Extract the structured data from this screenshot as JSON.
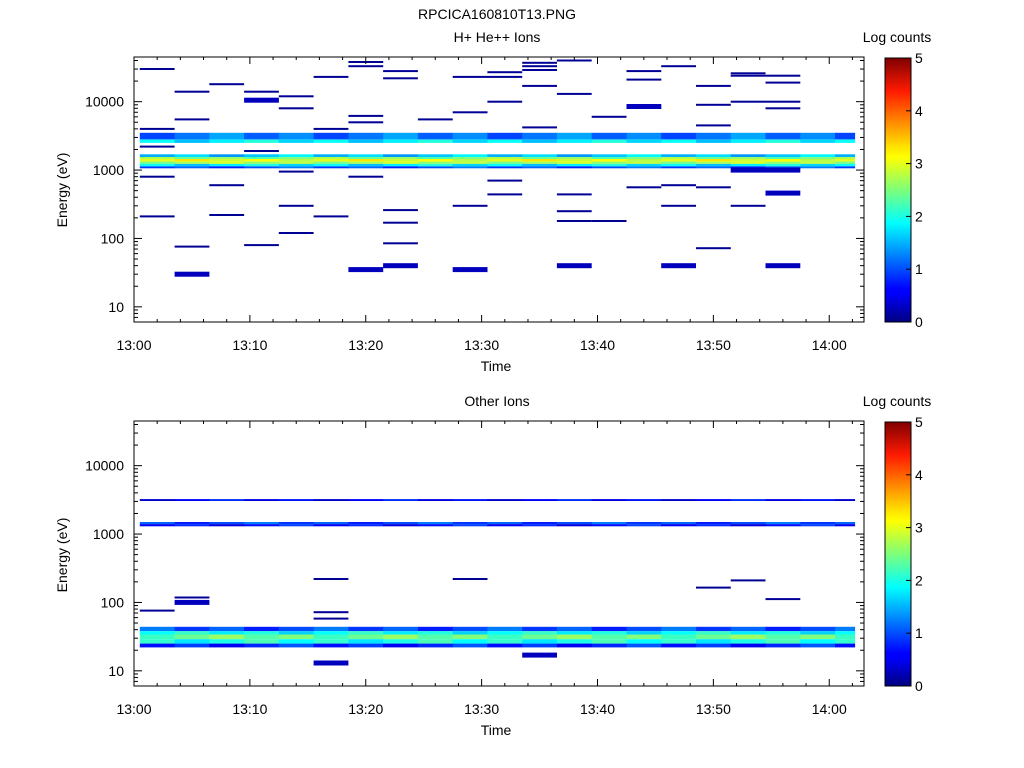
{
  "page_title": "RPCICA160810T13.PNG",
  "panels": [
    {
      "title": "H+ He++ Ions",
      "ylabel": "Energy (eV)",
      "xlabel": "Time",
      "colorbar_label": "Log counts"
    },
    {
      "title": "Other Ions",
      "ylabel": "Energy (eV)",
      "xlabel": "Time",
      "colorbar_label": "Log counts"
    }
  ],
  "chart_data": [
    {
      "type": "heatmap",
      "title": "H+ He++ Ions",
      "xlabel": "Time",
      "ylabel": "Energy (eV)",
      "y_scale": "log",
      "ylim": [
        6,
        45000
      ],
      "xlim": [
        "13:00",
        "14:03"
      ],
      "x_ticks": [
        "13:00",
        "13:10",
        "13:20",
        "13:30",
        "13:40",
        "13:50",
        "14:00"
      ],
      "y_ticks": [
        "10",
        "100",
        "1000",
        "10000"
      ],
      "colorbar": {
        "label": "Log counts",
        "min": 0,
        "max": 5,
        "ticks": [
          "0",
          "1",
          "2",
          "3",
          "4",
          "5"
        ],
        "colormap": "jet"
      },
      "time_bins": [
        "13:02",
        "13:05",
        "13:08",
        "13:11",
        "13:14",
        "13:17",
        "13:20",
        "13:23",
        "13:26",
        "13:29",
        "13:32",
        "13:35",
        "13:38",
        "13:41",
        "13:44",
        "13:47",
        "13:50",
        "13:53",
        "13:56",
        "13:59",
        "14:02"
      ],
      "bands": [
        {
          "e0": 2800,
          "e1": 3500,
          "v": 1.2
        },
        {
          "e0": 2500,
          "e1": 2800,
          "v": 1.8
        },
        {
          "e0": 1550,
          "e1": 1700,
          "v": 1.6
        },
        {
          "e0": 1450,
          "e1": 1550,
          "v": 2.5
        },
        {
          "e0": 1330,
          "e1": 1450,
          "v": 3.0
        },
        {
          "e0": 1230,
          "e1": 1330,
          "v": 2.7
        },
        {
          "e0": 1130,
          "e1": 1230,
          "v": 1.8
        },
        {
          "e0": 1060,
          "e1": 1130,
          "v": 1.0
        }
      ],
      "sparse": [
        {
          "t": 0,
          "e": 30000
        },
        {
          "t": 0,
          "e": 4000
        },
        {
          "t": 0,
          "e": 2200
        },
        {
          "t": 0,
          "e": 800
        },
        {
          "t": 0,
          "e": 210
        },
        {
          "t": 1,
          "e": 14000
        },
        {
          "t": 1,
          "e": 5500
        },
        {
          "t": 1,
          "e": 76
        },
        {
          "t": 1,
          "e": 30,
          "v": 0.3
        },
        {
          "t": 2,
          "e": 18000
        },
        {
          "t": 2,
          "e": 600
        },
        {
          "t": 2,
          "e": 220
        },
        {
          "t": 3,
          "e": 14000
        },
        {
          "t": 3,
          "e": 10500,
          "v": 0.3
        },
        {
          "t": 3,
          "e": 1900
        },
        {
          "t": 3,
          "e": 80
        },
        {
          "t": 4,
          "e": 12000
        },
        {
          "t": 4,
          "e": 8000
        },
        {
          "t": 4,
          "e": 950
        },
        {
          "t": 4,
          "e": 300
        },
        {
          "t": 4,
          "e": 120
        },
        {
          "t": 5,
          "e": 23000
        },
        {
          "t": 5,
          "e": 4000
        },
        {
          "t": 5,
          "e": 210
        },
        {
          "t": 6,
          "e": 38000
        },
        {
          "t": 6,
          "e": 33000
        },
        {
          "t": 6,
          "e": 6200
        },
        {
          "t": 6,
          "e": 5000
        },
        {
          "t": 6,
          "e": 800
        },
        {
          "t": 6,
          "e": 35,
          "v": 0.3
        },
        {
          "t": 7,
          "e": 28000
        },
        {
          "t": 7,
          "e": 22000
        },
        {
          "t": 7,
          "e": 260
        },
        {
          "t": 7,
          "e": 170
        },
        {
          "t": 7,
          "e": 85
        },
        {
          "t": 7,
          "e": 40,
          "v": 0.3
        },
        {
          "t": 8,
          "e": 5500
        },
        {
          "t": 9,
          "e": 23000
        },
        {
          "t": 9,
          "e": 7000
        },
        {
          "t": 9,
          "e": 300
        },
        {
          "t": 9,
          "e": 35,
          "v": 0.3
        },
        {
          "t": 10,
          "e": 27000
        },
        {
          "t": 10,
          "e": 23000
        },
        {
          "t": 10,
          "e": 10000
        },
        {
          "t": 10,
          "e": 700
        },
        {
          "t": 10,
          "e": 440
        },
        {
          "t": 11,
          "e": 37000
        },
        {
          "t": 11,
          "e": 33000
        },
        {
          "t": 11,
          "e": 29000
        },
        {
          "t": 11,
          "e": 17000
        },
        {
          "t": 11,
          "e": 4200
        },
        {
          "t": 12,
          "e": 40000
        },
        {
          "t": 12,
          "e": 13000
        },
        {
          "t": 12,
          "e": 440
        },
        {
          "t": 12,
          "e": 250
        },
        {
          "t": 12,
          "e": 180
        },
        {
          "t": 12,
          "e": 40,
          "v": 0.3
        },
        {
          "t": 13,
          "e": 6000
        },
        {
          "t": 13,
          "e": 180
        },
        {
          "t": 14,
          "e": 28000
        },
        {
          "t": 14,
          "e": 21000
        },
        {
          "t": 14,
          "e": 8500,
          "v": 0.3
        },
        {
          "t": 14,
          "e": 560
        },
        {
          "t": 15,
          "e": 33000
        },
        {
          "t": 15,
          "e": 600
        },
        {
          "t": 15,
          "e": 300
        },
        {
          "t": 15,
          "e": 40,
          "v": 0.3
        },
        {
          "t": 16,
          "e": 17000
        },
        {
          "t": 16,
          "e": 9000
        },
        {
          "t": 16,
          "e": 4500
        },
        {
          "t": 16,
          "e": 560
        },
        {
          "t": 16,
          "e": 72
        },
        {
          "t": 17,
          "e": 26000
        },
        {
          "t": 17,
          "e": 24000
        },
        {
          "t": 17,
          "e": 10000
        },
        {
          "t": 17,
          "e": 1000,
          "v": 0.3
        },
        {
          "t": 17,
          "e": 300
        },
        {
          "t": 18,
          "e": 24000
        },
        {
          "t": 18,
          "e": 19000
        },
        {
          "t": 18,
          "e": 10000
        },
        {
          "t": 18,
          "e": 8000
        },
        {
          "t": 18,
          "e": 1000,
          "v": 0.3
        },
        {
          "t": 18,
          "e": 460,
          "v": 0.3
        },
        {
          "t": 18,
          "e": 40,
          "v": 0.3
        }
      ]
    },
    {
      "type": "heatmap",
      "title": "Other Ions",
      "xlabel": "Time",
      "ylabel": "Energy (eV)",
      "y_scale": "log",
      "ylim": [
        6,
        45000
      ],
      "xlim": [
        "13:00",
        "14:03"
      ],
      "x_ticks": [
        "13:00",
        "13:10",
        "13:20",
        "13:30",
        "13:40",
        "13:50",
        "14:00"
      ],
      "y_ticks": [
        "10",
        "100",
        "1000",
        "10000"
      ],
      "colorbar": {
        "label": "Log counts",
        "min": 0,
        "max": 5,
        "ticks": [
          "0",
          "1",
          "2",
          "3",
          "4",
          "5"
        ],
        "colormap": "jet"
      },
      "bands": [
        {
          "e0": 3050,
          "e1": 3250,
          "v": 0.6
        },
        {
          "e0": 1400,
          "e1": 1500,
          "v": 1.0
        },
        {
          "e0": 1300,
          "e1": 1400,
          "v": 0.7
        },
        {
          "e0": 38,
          "e1": 44,
          "v": 1.0
        },
        {
          "e0": 34,
          "e1": 38,
          "v": 1.9
        },
        {
          "e0": 29,
          "e1": 34,
          "v": 2.4
        },
        {
          "e0": 25,
          "e1": 29,
          "v": 2.0
        },
        {
          "e0": 22,
          "e1": 25,
          "v": 0.8
        }
      ],
      "sparse": [
        {
          "t": 0,
          "e": 76
        },
        {
          "t": 1,
          "e": 118
        },
        {
          "t": 1,
          "e": 100,
          "v": 0.3
        },
        {
          "t": 5,
          "e": 220
        },
        {
          "t": 5,
          "e": 72
        },
        {
          "t": 5,
          "e": 58
        },
        {
          "t": 5,
          "e": 13,
          "v": 0.3
        },
        {
          "t": 9,
          "e": 220
        },
        {
          "t": 11,
          "e": 17,
          "v": 0.3
        },
        {
          "t": 16,
          "e": 165
        },
        {
          "t": 17,
          "e": 210
        },
        {
          "t": 18,
          "e": 112
        }
      ]
    }
  ]
}
